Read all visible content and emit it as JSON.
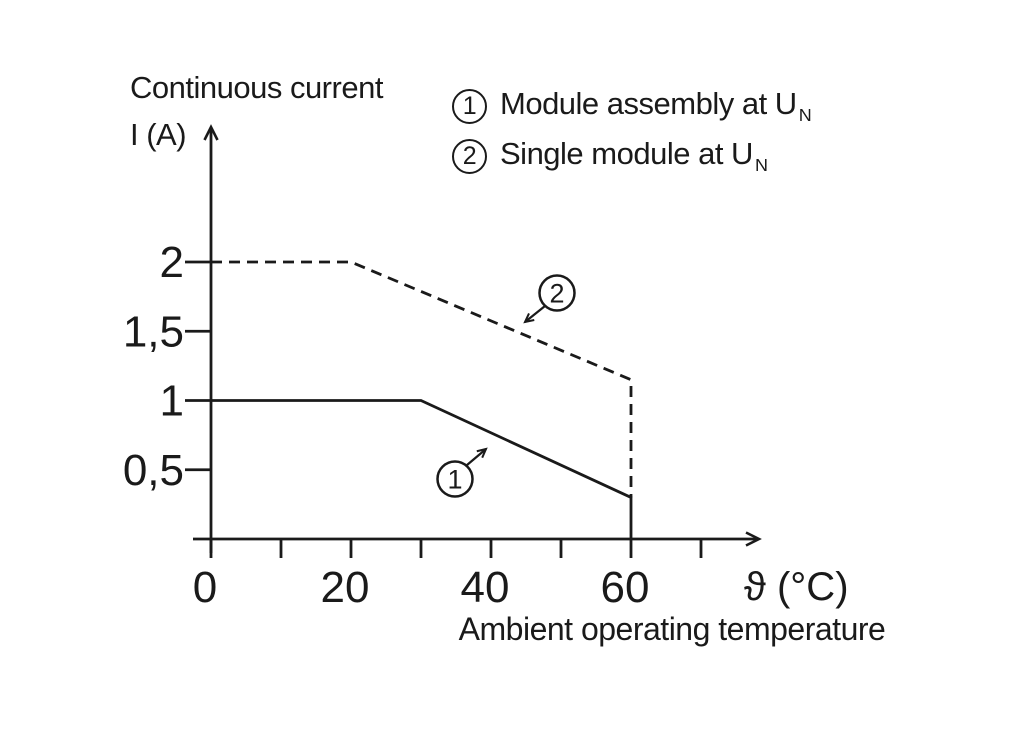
{
  "page": {
    "background": "#ffffff",
    "ink_color": "#1a1a1a"
  },
  "y_axis_title": {
    "line1": "Continuous current",
    "line2": "I (A)"
  },
  "legend": {
    "items": [
      {
        "marker": "1",
        "label": "Module assembly at U",
        "subscript": "N"
      },
      {
        "marker": "2",
        "label": "Single module at U",
        "subscript": "N"
      }
    ]
  },
  "x_axis": {
    "symbol_label": "ϑ (°C)",
    "caption": "Ambient operating temperature"
  },
  "chart_data": {
    "type": "line",
    "title": "",
    "xlabel": "Ambient operating temperature ϑ (°C)",
    "ylabel": "Continuous current I (A)",
    "xlim": [
      0,
      79
    ],
    "ylim": [
      0,
      3
    ],
    "grid": false,
    "legend_position": "top-right",
    "x_ticks": [
      0,
      10,
      20,
      30,
      40,
      50,
      60,
      70
    ],
    "x_tick_labels": [
      "0",
      "",
      "20",
      "",
      "40",
      "",
      "60",
      ""
    ],
    "y_ticks": [
      0.5,
      1,
      1.5,
      2
    ],
    "y_tick_labels": [
      "0,5",
      "1",
      "1,5",
      "2"
    ],
    "series": [
      {
        "marker": "1",
        "name": "Module assembly at UN",
        "style": "solid",
        "points": [
          [
            0,
            1
          ],
          [
            30,
            1
          ],
          [
            60,
            0.3
          ],
          [
            60,
            0
          ]
        ]
      },
      {
        "marker": "2",
        "name": "Single module at UN",
        "style": "dashed",
        "points": [
          [
            0,
            2
          ],
          [
            20,
            2
          ],
          [
            60,
            1.15
          ],
          [
            60,
            0.3
          ]
        ]
      }
    ]
  }
}
